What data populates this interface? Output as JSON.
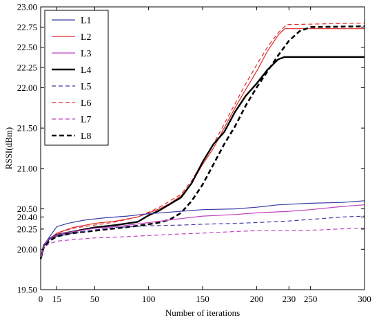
{
  "chart_data": {
    "type": "line",
    "title": "",
    "xlabel": "Number of iterations",
    "ylabel": "RSSI(dBm)",
    "xlim": [
      0,
      300
    ],
    "ylim": [
      19.5,
      23.0
    ],
    "xticks": [
      0,
      15,
      50,
      100,
      150,
      200,
      230,
      250,
      300
    ],
    "yticks": [
      19.5,
      20.0,
      20.25,
      20.4,
      20.5,
      21.0,
      21.5,
      22.0,
      22.25,
      22.5,
      22.75,
      23.0
    ],
    "xtick_labels": [
      "0",
      "15",
      "50",
      "100",
      "150",
      "200",
      "230",
      "250",
      "300"
    ],
    "ytick_labels": [
      "19.50",
      "20.00",
      "20.25",
      "20.40",
      "20.50",
      "21.00",
      "21.50",
      "22.00",
      "22.25",
      "22.50",
      "22.75",
      "23.00"
    ],
    "grid": false,
    "legend_position": "top-left",
    "series": [
      {
        "name": "L1",
        "color": "#3b3ba8",
        "dash": "solid",
        "width": 1.2,
        "points": [
          [
            0,
            19.88
          ],
          [
            3,
            20.05
          ],
          [
            8,
            20.15
          ],
          [
            15,
            20.28
          ],
          [
            25,
            20.32
          ],
          [
            40,
            20.36
          ],
          [
            60,
            20.39
          ],
          [
            80,
            20.41
          ],
          [
            100,
            20.44
          ],
          [
            120,
            20.46
          ],
          [
            150,
            20.49
          ],
          [
            180,
            20.5
          ],
          [
            200,
            20.52
          ],
          [
            220,
            20.55
          ],
          [
            250,
            20.57
          ],
          [
            280,
            20.58
          ],
          [
            300,
            20.6
          ]
        ]
      },
      {
        "name": "L2",
        "color": "#e02828",
        "dash": "solid",
        "width": 1.2,
        "points": [
          [
            0,
            19.88
          ],
          [
            3,
            20.05
          ],
          [
            8,
            20.12
          ],
          [
            15,
            20.2
          ],
          [
            30,
            20.27
          ],
          [
            50,
            20.32
          ],
          [
            70,
            20.35
          ],
          [
            90,
            20.4
          ],
          [
            100,
            20.45
          ],
          [
            110,
            20.5
          ],
          [
            120,
            20.57
          ],
          [
            130,
            20.66
          ],
          [
            140,
            20.82
          ],
          [
            150,
            21.05
          ],
          [
            160,
            21.25
          ],
          [
            170,
            21.5
          ],
          [
            180,
            21.75
          ],
          [
            190,
            21.98
          ],
          [
            200,
            22.2
          ],
          [
            210,
            22.45
          ],
          [
            220,
            22.65
          ],
          [
            226,
            22.73
          ],
          [
            300,
            22.73
          ]
        ]
      },
      {
        "name": "L3",
        "color": "#c040c0",
        "dash": "solid",
        "width": 1.2,
        "points": [
          [
            0,
            19.88
          ],
          [
            3,
            20.05
          ],
          [
            8,
            20.13
          ],
          [
            15,
            20.18
          ],
          [
            30,
            20.22
          ],
          [
            50,
            20.26
          ],
          [
            70,
            20.28
          ],
          [
            100,
            20.33
          ],
          [
            130,
            20.38
          ],
          [
            150,
            20.41
          ],
          [
            180,
            20.43
          ],
          [
            200,
            20.45
          ],
          [
            230,
            20.47
          ],
          [
            250,
            20.49
          ],
          [
            280,
            20.53
          ],
          [
            300,
            20.55
          ]
        ]
      },
      {
        "name": "L4",
        "color": "#000000",
        "dash": "solid",
        "width": 2.4,
        "points": [
          [
            0,
            19.88
          ],
          [
            3,
            20.05
          ],
          [
            8,
            20.13
          ],
          [
            15,
            20.18
          ],
          [
            30,
            20.22
          ],
          [
            50,
            20.27
          ],
          [
            70,
            20.3
          ],
          [
            90,
            20.34
          ],
          [
            100,
            20.42
          ],
          [
            110,
            20.48
          ],
          [
            120,
            20.56
          ],
          [
            130,
            20.64
          ],
          [
            140,
            20.82
          ],
          [
            150,
            21.08
          ],
          [
            160,
            21.3
          ],
          [
            170,
            21.45
          ],
          [
            180,
            21.7
          ],
          [
            190,
            21.9
          ],
          [
            200,
            22.05
          ],
          [
            210,
            22.22
          ],
          [
            220,
            22.35
          ],
          [
            226,
            22.38
          ],
          [
            300,
            22.38
          ]
        ]
      },
      {
        "name": "L5",
        "color": "#3b3ba8",
        "dash": "6,4",
        "width": 1.2,
        "points": [
          [
            0,
            19.88
          ],
          [
            3,
            20.05
          ],
          [
            8,
            20.12
          ],
          [
            15,
            20.16
          ],
          [
            30,
            20.2
          ],
          [
            50,
            20.24
          ],
          [
            70,
            20.27
          ],
          [
            100,
            20.29
          ],
          [
            130,
            20.3
          ],
          [
            150,
            20.31
          ],
          [
            180,
            20.32
          ],
          [
            200,
            20.33
          ],
          [
            230,
            20.35
          ],
          [
            260,
            20.38
          ],
          [
            280,
            20.4
          ],
          [
            300,
            20.41
          ]
        ]
      },
      {
        "name": "L6",
        "color": "#e02828",
        "dash": "6,4",
        "width": 1.2,
        "points": [
          [
            0,
            19.88
          ],
          [
            3,
            20.05
          ],
          [
            8,
            20.12
          ],
          [
            15,
            20.2
          ],
          [
            30,
            20.26
          ],
          [
            50,
            20.3
          ],
          [
            70,
            20.34
          ],
          [
            90,
            20.4
          ],
          [
            100,
            20.46
          ],
          [
            110,
            20.52
          ],
          [
            120,
            20.6
          ],
          [
            130,
            20.68
          ],
          [
            140,
            20.85
          ],
          [
            150,
            21.08
          ],
          [
            160,
            21.3
          ],
          [
            170,
            21.55
          ],
          [
            180,
            21.8
          ],
          [
            190,
            22.05
          ],
          [
            200,
            22.28
          ],
          [
            210,
            22.5
          ],
          [
            220,
            22.68
          ],
          [
            228,
            22.78
          ],
          [
            300,
            22.8
          ]
        ]
      },
      {
        "name": "L7",
        "color": "#c040c0",
        "dash": "6,4",
        "width": 1.2,
        "points": [
          [
            0,
            19.88
          ],
          [
            3,
            20.02
          ],
          [
            8,
            20.07
          ],
          [
            15,
            20.1
          ],
          [
            30,
            20.12
          ],
          [
            50,
            20.14
          ],
          [
            70,
            20.15
          ],
          [
            100,
            20.17
          ],
          [
            130,
            20.19
          ],
          [
            150,
            20.2
          ],
          [
            180,
            20.22
          ],
          [
            200,
            20.23
          ],
          [
            230,
            20.23
          ],
          [
            260,
            20.24
          ],
          [
            290,
            20.26
          ],
          [
            300,
            20.26
          ]
        ]
      },
      {
        "name": "L8",
        "color": "#000000",
        "dash": "7,4",
        "width": 2.6,
        "points": [
          [
            0,
            19.88
          ],
          [
            3,
            20.03
          ],
          [
            8,
            20.1
          ],
          [
            15,
            20.16
          ],
          [
            30,
            20.2
          ],
          [
            50,
            20.23
          ],
          [
            70,
            20.26
          ],
          [
            90,
            20.29
          ],
          [
            100,
            20.31
          ],
          [
            110,
            20.33
          ],
          [
            120,
            20.37
          ],
          [
            130,
            20.45
          ],
          [
            140,
            20.6
          ],
          [
            150,
            20.8
          ],
          [
            160,
            21.05
          ],
          [
            170,
            21.3
          ],
          [
            180,
            21.52
          ],
          [
            190,
            21.78
          ],
          [
            200,
            22.0
          ],
          [
            210,
            22.2
          ],
          [
            220,
            22.4
          ],
          [
            230,
            22.58
          ],
          [
            240,
            22.7
          ],
          [
            250,
            22.75
          ],
          [
            300,
            22.76
          ]
        ]
      }
    ],
    "annotations": []
  }
}
